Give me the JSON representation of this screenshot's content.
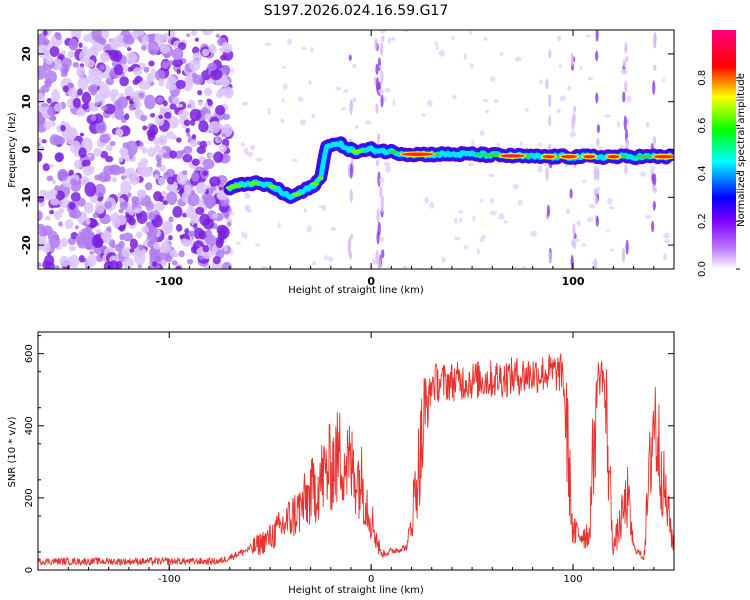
{
  "title": "S197.2026.024.16.59.G17",
  "chart_data": [
    {
      "type": "heatmap",
      "xlabel": "Height of straight line (km)",
      "ylabel": "Frequency (Hz)",
      "xlim": [
        -165,
        150
      ],
      "ylim": [
        -25,
        25
      ],
      "xticks": [
        -100,
        0,
        100
      ],
      "yticks": [
        -20,
        -10,
        0,
        10,
        20
      ],
      "colorbar": {
        "label": "Normalized spectral amplitude",
        "ticks": [
          "0.0",
          "0.2",
          "0.4",
          "0.6",
          "0.8"
        ],
        "range": [
          0,
          1
        ],
        "stops": [
          "#ffffff",
          "#8000ff",
          "#0000ff",
          "#00ffff",
          "#00ff00",
          "#ffff00",
          "#ff0000",
          "#ff00aa"
        ]
      },
      "ridge": [
        {
          "x": -70,
          "y": -8
        },
        {
          "x": -60,
          "y": -7
        },
        {
          "x": -50,
          "y": -7.5
        },
        {
          "x": -40,
          "y": -10
        },
        {
          "x": -30,
          "y": -8
        },
        {
          "x": -25,
          "y": -6
        },
        {
          "x": -22,
          "y": 1
        },
        {
          "x": -15,
          "y": 1
        },
        {
          "x": -8,
          "y": -0.5
        },
        {
          "x": 0,
          "y": 0
        },
        {
          "x": 20,
          "y": -1
        },
        {
          "x": 50,
          "y": -1
        },
        {
          "x": 80,
          "y": -1.5
        },
        {
          "x": 100,
          "y": -1.5
        },
        {
          "x": 148,
          "y": -1.5
        }
      ]
    },
    {
      "type": "line",
      "xlabel": "Height of straight line (km)",
      "ylabel": "SNR (10 * v/v)",
      "xlim": [
        -165,
        150
      ],
      "ylim": [
        0,
        660
      ],
      "xticks": [
        -100,
        0,
        100
      ],
      "yticks": [
        0,
        200,
        400,
        600
      ],
      "series_color": "#e8322e",
      "envelope": [
        {
          "x": -165,
          "y": 20
        },
        {
          "x": -75,
          "y": 20
        },
        {
          "x": -62,
          "y": 50
        },
        {
          "x": -50,
          "y": 90
        },
        {
          "x": -35,
          "y": 170
        },
        {
          "x": -25,
          "y": 250
        },
        {
          "x": -15,
          "y": 320
        },
        {
          "x": -5,
          "y": 250
        },
        {
          "x": 5,
          "y": 40
        },
        {
          "x": 18,
          "y": 60
        },
        {
          "x": 25,
          "y": 350
        },
        {
          "x": 30,
          "y": 530
        },
        {
          "x": 60,
          "y": 540
        },
        {
          "x": 90,
          "y": 560
        },
        {
          "x": 95,
          "y": 555
        },
        {
          "x": 100,
          "y": 100
        },
        {
          "x": 108,
          "y": 100
        },
        {
          "x": 112,
          "y": 540
        },
        {
          "x": 115,
          "y": 560
        },
        {
          "x": 120,
          "y": 60
        },
        {
          "x": 127,
          "y": 200
        },
        {
          "x": 130,
          "y": 60
        },
        {
          "x": 135,
          "y": 30
        },
        {
          "x": 140,
          "y": 440
        },
        {
          "x": 145,
          "y": 230
        },
        {
          "x": 150,
          "y": 60
        }
      ]
    }
  ]
}
